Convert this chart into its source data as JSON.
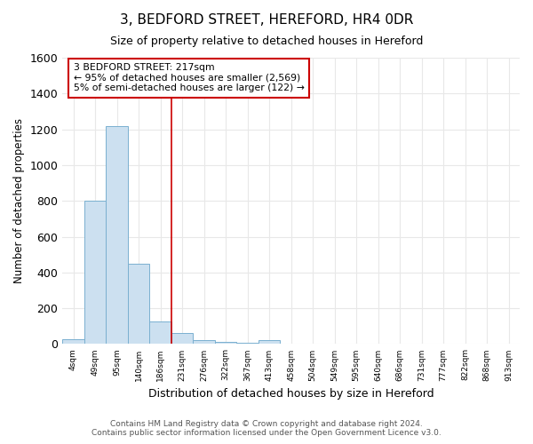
{
  "title": "3, BEDFORD STREET, HEREFORD, HR4 0DR",
  "subtitle": "Size of property relative to detached houses in Hereford",
  "xlabel": "Distribution of detached houses by size in Hereford",
  "ylabel": "Number of detached properties",
  "bins": [
    "4sqm",
    "49sqm",
    "95sqm",
    "140sqm",
    "186sqm",
    "231sqm",
    "276sqm",
    "322sqm",
    "367sqm",
    "413sqm",
    "458sqm",
    "504sqm",
    "549sqm",
    "595sqm",
    "640sqm",
    "686sqm",
    "731sqm",
    "777sqm",
    "822sqm",
    "868sqm",
    "913sqm"
  ],
  "values": [
    25,
    800,
    1220,
    450,
    125,
    60,
    20,
    10,
    5,
    20,
    0,
    0,
    0,
    0,
    0,
    0,
    0,
    0,
    0,
    0,
    0
  ],
  "bar_color": "#cce0f0",
  "bar_edge_color": "#7ab0d0",
  "red_line_index": 5,
  "ylim": [
    0,
    1600
  ],
  "yticks": [
    0,
    200,
    400,
    600,
    800,
    1000,
    1200,
    1400,
    1600
  ],
  "annotation_line1": "3 BEDFORD STREET: 217sqm",
  "annotation_line2": "← 95% of detached houses are smaller (2,569)",
  "annotation_line3": "5% of semi-detached houses are larger (122) →",
  "annotation_box_color": "#ffffff",
  "annotation_box_edge": "#cc0000",
  "footer1": "Contains HM Land Registry data © Crown copyright and database right 2024.",
  "footer2": "Contains public sector information licensed under the Open Government Licence v3.0.",
  "background_color": "#ffffff",
  "grid_color": "#e8e8e8"
}
